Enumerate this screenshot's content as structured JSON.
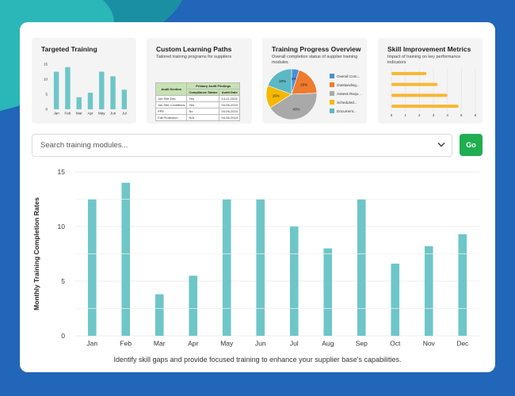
{
  "colors": {
    "bar": "#6ec6c8",
    "go": "#1fae50",
    "skill_bar": "#f7b733"
  },
  "targeted_training": {
    "title": "Targeted Training",
    "chart_data": {
      "type": "bar",
      "categories": [
        "Jan",
        "Feb",
        "Mar",
        "Apr",
        "May",
        "Jun",
        "Jul"
      ],
      "values": [
        12.5,
        14,
        4,
        5.5,
        12.5,
        11,
        6.5
      ],
      "ylim": [
        0,
        15
      ],
      "yticks": [
        "0",
        "5",
        "10",
        "15"
      ]
    }
  },
  "custom_paths": {
    "title": "Custom Learning Paths",
    "subtitle": "Tailored training programs for suppliers",
    "table": {
      "group_header": "Primary Audit Findings",
      "col_headers": [
        "Audit Section",
        "Compliance Status",
        "Audit Date"
      ],
      "rows": [
        [
          "Job Site Dec",
          "Yes",
          "14-11-2024"
        ],
        [
          "Job Site Conditions",
          "Yes",
          "04-06-2024"
        ],
        [
          "PPE",
          "No",
          "04-06-2024"
        ],
        [
          "Fall Protection",
          "N/A",
          "04-06-2024"
        ]
      ]
    }
  },
  "progress": {
    "title": "Training Progress Overview",
    "subtitle": "Overall completion status of supplier training modules",
    "chart_data": {
      "type": "pie",
      "labels": [
        "Overall Com...",
        "Outstanding...",
        "Assess Requ...",
        "Scheduled...",
        "Document..."
      ],
      "values": [
        5,
        20,
        43,
        15,
        20
      ],
      "value_labels": [
        "5%",
        "20%",
        "43%",
        "15%",
        "20%"
      ],
      "colors": [
        "#4a90d9",
        "#ef7b2e",
        "#a9a9a9",
        "#f5b800",
        "#5cb8c4"
      ]
    }
  },
  "skills": {
    "title": "Skill Improvement Metrics",
    "subtitle": "Impact of training on key performance indicators",
    "chart_data": {
      "type": "bar",
      "orientation": "horizontal",
      "values": [
        2.5,
        3.3,
        4.0,
        4.8
      ],
      "xlim": [
        0,
        6
      ],
      "xticks": [
        "0",
        "1",
        "2",
        "3",
        "4",
        "5",
        "6"
      ]
    }
  },
  "search": {
    "placeholder": "Search training modules...",
    "go_label": "Go"
  },
  "main_chart": {
    "chart_data": {
      "type": "bar",
      "categories": [
        "Jan",
        "Feb",
        "Mar",
        "Apr",
        "May",
        "Jun",
        "Jul",
        "Aug",
        "Sep",
        "Oct",
        "Nov",
        "Dec"
      ],
      "values": [
        12.5,
        14,
        3.8,
        5.5,
        12.5,
        12.5,
        10,
        8,
        12.5,
        6.6,
        8.2,
        9.3
      ],
      "ylabel": "Monthly Training Completion Rates",
      "ylim": [
        0,
        15
      ],
      "yticks": [
        "0",
        "5",
        "10",
        "15"
      ],
      "grid": true
    }
  },
  "caption": "Identify skill gaps and provide focused training to enhance your supplier base's capabilities."
}
